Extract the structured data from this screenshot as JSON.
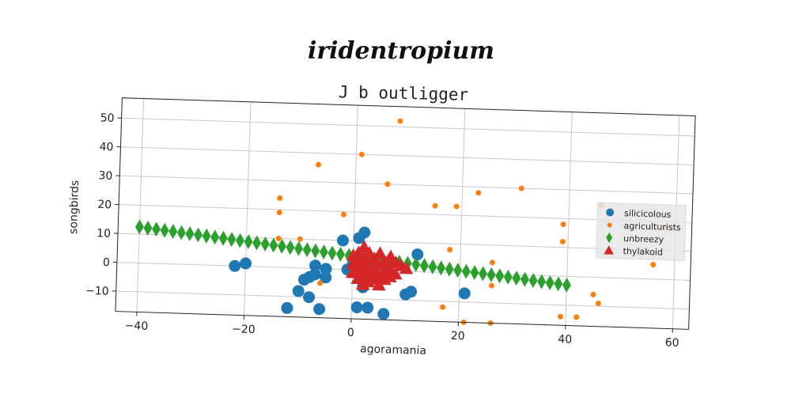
{
  "supertitle": "iridentropium",
  "chart_data": {
    "type": "scatter",
    "title": "J b outligger",
    "xlabel": "agoramania",
    "ylabel": "songbirds",
    "xlim": [
      -44,
      63
    ],
    "ylim": [
      -17,
      57
    ],
    "xticks": [
      -40,
      -20,
      0,
      20,
      40,
      60
    ],
    "yticks": [
      -10,
      0,
      10,
      20,
      30,
      40,
      50
    ],
    "grid": true,
    "legend_position": "center-right",
    "series": [
      {
        "name": "silicicolous",
        "marker": "circle",
        "size": "large",
        "color": "#1f77b4",
        "points": [
          [
            -22,
            0
          ],
          [
            -20,
            1
          ],
          [
            -12,
            -14
          ],
          [
            -10,
            -8
          ],
          [
            -9,
            -4
          ],
          [
            -8,
            -3
          ],
          [
            -8,
            -10
          ],
          [
            -7,
            1
          ],
          [
            -7,
            -2
          ],
          [
            -6,
            -14
          ],
          [
            -5,
            0
          ],
          [
            -5,
            -3
          ],
          [
            -2,
            10
          ],
          [
            -1,
            0
          ],
          [
            0,
            2
          ],
          [
            1,
            11
          ],
          [
            1,
            -13
          ],
          [
            2,
            13
          ],
          [
            2,
            -6
          ],
          [
            2,
            4
          ],
          [
            3,
            -13
          ],
          [
            4,
            0
          ],
          [
            6,
            -15
          ],
          [
            10,
            -8
          ],
          [
            11,
            -7
          ],
          [
            12,
            6
          ],
          [
            21,
            -7
          ]
        ]
      },
      {
        "name": "agriculturists",
        "marker": "circle",
        "size": "small",
        "color": "#ff7f0e",
        "points": [
          [
            8,
            52
          ],
          [
            1,
            40
          ],
          [
            -7,
            36
          ],
          [
            6,
            30
          ],
          [
            23,
            28
          ],
          [
            31,
            30
          ],
          [
            -14,
            24
          ],
          [
            -14,
            19
          ],
          [
            -2,
            19
          ],
          [
            15,
            23
          ],
          [
            19,
            23
          ],
          [
            39,
            18
          ],
          [
            39,
            12
          ],
          [
            46,
            25
          ],
          [
            58,
            18
          ],
          [
            56,
            5
          ],
          [
            -14,
            10
          ],
          [
            -10,
            10
          ],
          [
            18,
            8
          ],
          [
            26,
            4
          ],
          [
            17,
            -12
          ],
          [
            21,
            -17
          ],
          [
            26,
            -17
          ],
          [
            26,
            -4
          ],
          [
            39,
            -14
          ],
          [
            42,
            -14
          ],
          [
            45,
            -6
          ],
          [
            46,
            -9
          ],
          [
            -6,
            -5
          ]
        ]
      },
      {
        "name": "unbreezy",
        "marker": "diamond",
        "size": "medium",
        "color": "#2ca02c",
        "from": [
          -40,
          12.5
        ],
        "to": [
          40,
          -3
        ],
        "count": 52
      },
      {
        "name": "thylakoid",
        "marker": "triangle",
        "size": "medium",
        "color": "#d62728",
        "points": [
          [
            0,
            5
          ],
          [
            0,
            2
          ],
          [
            0,
            -1
          ],
          [
            1,
            6
          ],
          [
            1,
            3
          ],
          [
            1,
            0
          ],
          [
            1,
            -3
          ],
          [
            2,
            8
          ],
          [
            2,
            4
          ],
          [
            2,
            1
          ],
          [
            2,
            -2
          ],
          [
            2,
            -5
          ],
          [
            3,
            6
          ],
          [
            3,
            2
          ],
          [
            3,
            -1
          ],
          [
            3,
            -4
          ],
          [
            4,
            4
          ],
          [
            4,
            0
          ],
          [
            4,
            -3
          ],
          [
            5,
            6
          ],
          [
            5,
            2
          ],
          [
            5,
            -2
          ],
          [
            5,
            -5
          ],
          [
            6,
            3
          ],
          [
            6,
            0
          ],
          [
            6,
            -3
          ],
          [
            7,
            5
          ],
          [
            7,
            1
          ],
          [
            7,
            -2
          ],
          [
            8,
            3
          ],
          [
            8,
            -1
          ],
          [
            9,
            2
          ],
          [
            10,
            1
          ]
        ]
      }
    ]
  }
}
